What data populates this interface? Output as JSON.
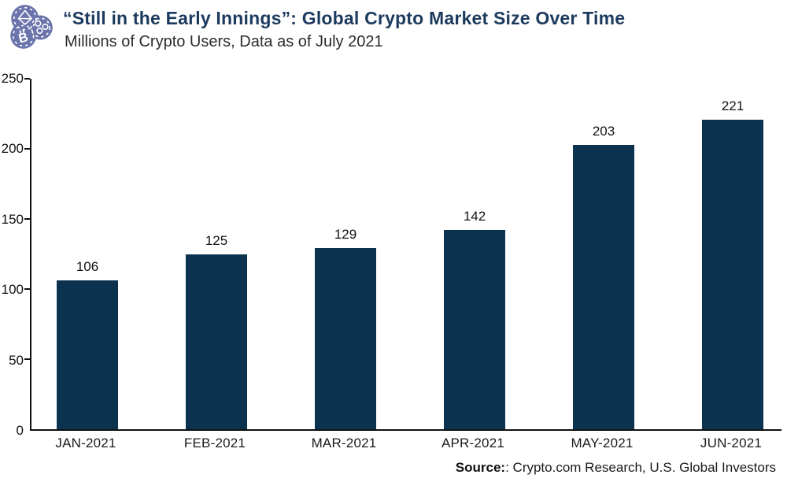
{
  "header": {
    "title": "“Still in the Early Innings”: Global Crypto Market Size Over Time",
    "subtitle": "Millions of Crypto Users, Data as of July 2021",
    "logo_icon": "crypto-coins-logo"
  },
  "chart_data": {
    "type": "bar",
    "title": "“Still in the Early Innings”: Global Crypto Market Size Over Time",
    "subtitle": "Millions of Crypto Users, Data as of July 2021",
    "categories": [
      "JAN-2021",
      "FEB-2021",
      "MAR-2021",
      "APR-2021",
      "MAY-2021",
      "JUN-2021"
    ],
    "values": [
      106,
      125,
      129,
      142,
      203,
      221
    ],
    "xlabel": "",
    "ylabel": "",
    "ylim": [
      0,
      250
    ],
    "yticks": [
      0,
      50,
      100,
      150,
      200,
      250
    ],
    "grid": false,
    "legend": false,
    "value_labels": true,
    "bar_color": "#0b3350"
  },
  "footer": {
    "source_label": "Source:",
    "source_text": ": Crypto.com Research, U.S. Global Investors"
  },
  "colors": {
    "title": "#1c3a5e",
    "bar": "#0b3350",
    "axis": "#111111",
    "logo": "#6b74ab"
  }
}
